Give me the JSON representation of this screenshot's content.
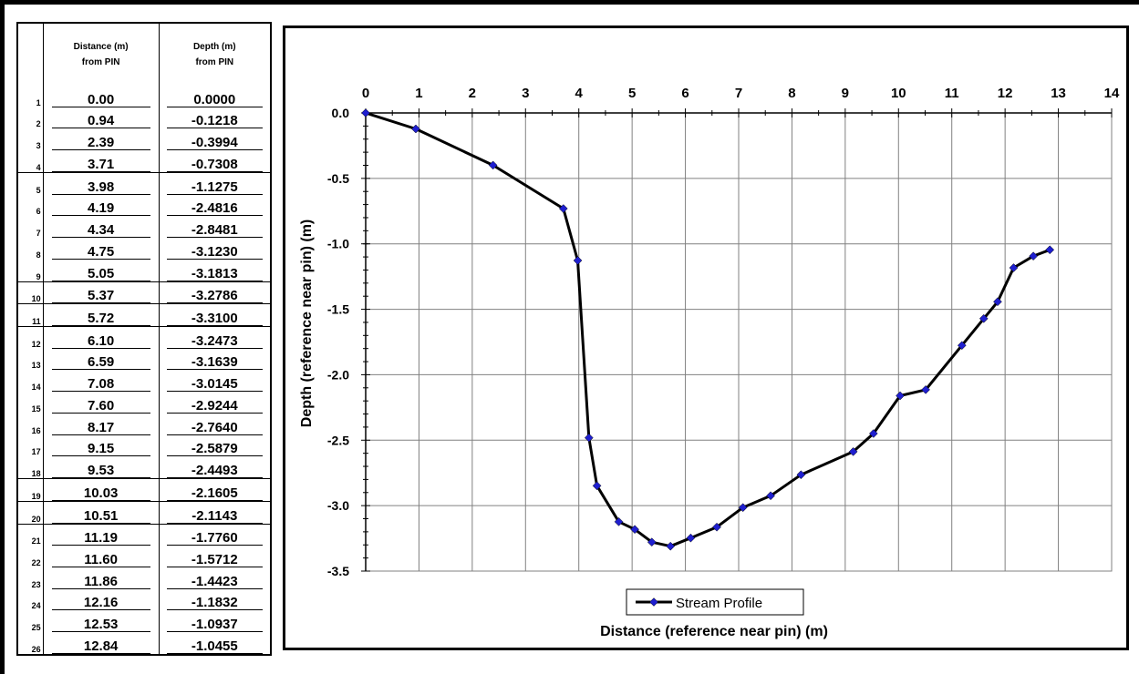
{
  "table": {
    "headers": [
      {
        "line1": "",
        "line2": ""
      },
      {
        "line1": "Distance (m)",
        "line2": "from PIN"
      },
      {
        "line1": "Depth (m)",
        "line2": "from PIN"
      }
    ],
    "rows": [
      {
        "n": "1",
        "distance": "0.00",
        "depth": "0.0000"
      },
      {
        "n": "2",
        "distance": "0.94",
        "depth": "-0.1218"
      },
      {
        "n": "3",
        "distance": "2.39",
        "depth": "-0.3994"
      },
      {
        "n": "4",
        "distance": "3.71",
        "depth": "-0.7308"
      },
      {
        "n": "5",
        "distance": "3.98",
        "depth": "-1.1275"
      },
      {
        "n": "6",
        "distance": "4.19",
        "depth": "-2.4816"
      },
      {
        "n": "7",
        "distance": "4.34",
        "depth": "-2.8481"
      },
      {
        "n": "8",
        "distance": "4.75",
        "depth": "-3.1230"
      },
      {
        "n": "9",
        "distance": "5.05",
        "depth": "-3.1813"
      },
      {
        "n": "10",
        "distance": "5.37",
        "depth": "-3.2786"
      },
      {
        "n": "11",
        "distance": "5.72",
        "depth": "-3.3100"
      },
      {
        "n": "12",
        "distance": "6.10",
        "depth": "-3.2473"
      },
      {
        "n": "13",
        "distance": "6.59",
        "depth": "-3.1639"
      },
      {
        "n": "14",
        "distance": "7.08",
        "depth": "-3.0145"
      },
      {
        "n": "15",
        "distance": "7.60",
        "depth": "-2.9244"
      },
      {
        "n": "16",
        "distance": "8.17",
        "depth": "-2.7640"
      },
      {
        "n": "17",
        "distance": "9.15",
        "depth": "-2.5879"
      },
      {
        "n": "18",
        "distance": "9.53",
        "depth": "-2.4493"
      },
      {
        "n": "19",
        "distance": "10.03",
        "depth": "-2.1605"
      },
      {
        "n": "20",
        "distance": "10.51",
        "depth": "-2.1143"
      },
      {
        "n": "21",
        "distance": "11.19",
        "depth": "-1.7760"
      },
      {
        "n": "22",
        "distance": "11.60",
        "depth": "-1.5712"
      },
      {
        "n": "23",
        "distance": "11.86",
        "depth": "-1.4423"
      },
      {
        "n": "24",
        "distance": "12.16",
        "depth": "-1.1832"
      },
      {
        "n": "25",
        "distance": "12.53",
        "depth": "-1.0937"
      },
      {
        "n": "26",
        "distance": "12.84",
        "depth": "-1.0455"
      }
    ]
  },
  "chart_data": {
    "type": "line",
    "title": "",
    "xlabel": "Distance (reference near pin) (m)",
    "ylabel": "Depth (reference near pin) (m)",
    "xlim": [
      0,
      14
    ],
    "ylim": [
      -3.5,
      0
    ],
    "x_axis_position": "top",
    "x_ticks": [
      0,
      1,
      2,
      3,
      4,
      5,
      6,
      7,
      8,
      9,
      10,
      11,
      12,
      13,
      14
    ],
    "y_ticks": [
      0.0,
      -0.5,
      -1.0,
      -1.5,
      -2.0,
      -2.5,
      -3.0,
      -3.5
    ],
    "y_tick_labels": [
      "0.0",
      "-0.5",
      "-1.0",
      "-1.5",
      "-2.0",
      "-2.5",
      "-3.0",
      "-3.5"
    ],
    "grid": true,
    "legend_position": "bottom-center",
    "series": [
      {
        "name": "Stream Profile",
        "line_color": "#000000",
        "marker_color": "#1f1fcf",
        "marker": "diamond",
        "x": [
          0.0,
          0.94,
          2.39,
          3.71,
          3.98,
          4.19,
          4.34,
          4.75,
          5.05,
          5.37,
          5.72,
          6.1,
          6.59,
          7.08,
          7.6,
          8.17,
          9.15,
          9.53,
          10.03,
          10.51,
          11.19,
          11.6,
          11.86,
          12.16,
          12.53,
          12.84
        ],
        "y": [
          0.0,
          -0.1218,
          -0.3994,
          -0.7308,
          -1.1275,
          -2.4816,
          -2.8481,
          -3.123,
          -3.1813,
          -3.2786,
          -3.31,
          -3.2473,
          -3.1639,
          -3.0145,
          -2.9244,
          -2.764,
          -2.5879,
          -2.4493,
          -2.1605,
          -2.1143,
          -1.776,
          -1.5712,
          -1.4423,
          -1.1832,
          -1.0937,
          -1.0455
        ]
      }
    ]
  }
}
